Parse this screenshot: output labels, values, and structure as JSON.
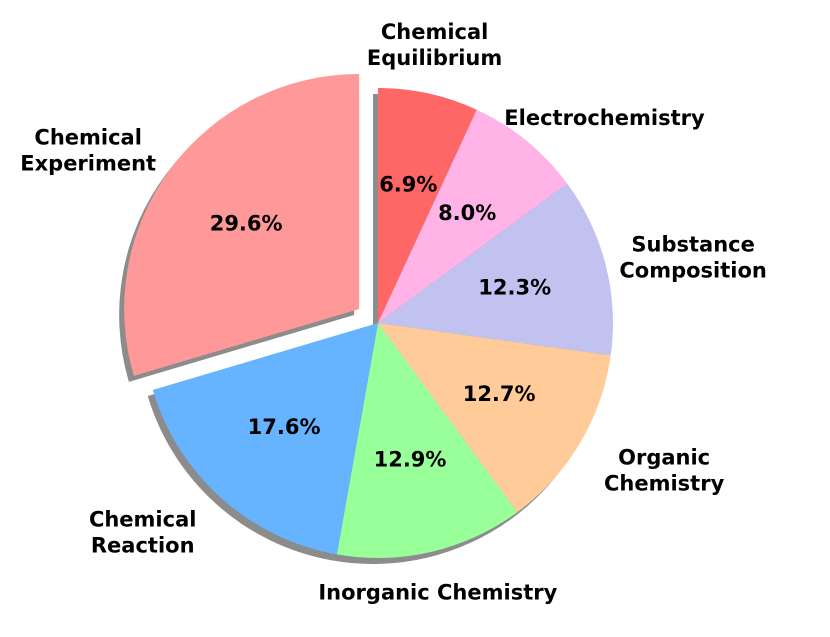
{
  "chart_data": {
    "type": "pie",
    "categories": [
      "Chemical\nEquilibrium",
      "Electrochemistry",
      "Substance\nComposition",
      "Organic\nChemistry",
      "Inorganic Chemistry",
      "Chemical\nReaction",
      "Chemical\nExperiment"
    ],
    "values": [
      6.9,
      8.0,
      12.3,
      12.7,
      12.9,
      17.6,
      29.6
    ],
    "value_labels": [
      "6.9%",
      "8.0%",
      "12.3%",
      "12.7%",
      "12.9%",
      "17.6%",
      "29.6%"
    ],
    "colors": [
      "#ff6666",
      "#ffb3e6",
      "#c2c2f0",
      "#ffcc99",
      "#99ff99",
      "#66b3ff",
      "#ff9999"
    ],
    "explode": [
      0,
      0,
      0,
      0,
      0,
      0,
      0.1
    ],
    "shadow": true
  }
}
